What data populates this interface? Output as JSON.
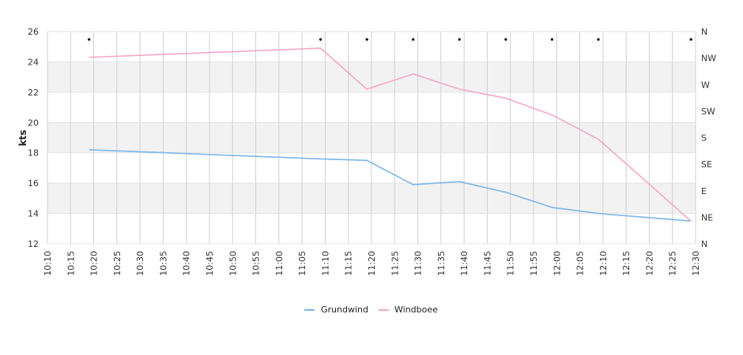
{
  "chart_data": {
    "type": "line",
    "ylabel": "kts",
    "xlabel": "",
    "ylim": [
      12,
      26
    ],
    "y_ticks": [
      12,
      14,
      16,
      18,
      20,
      22,
      24,
      26
    ],
    "x_tick_labels": [
      "10:10",
      "10:15",
      "10:20",
      "10:25",
      "10:30",
      "10:35",
      "10:40",
      "10:45",
      "10:50",
      "10:55",
      "11:00",
      "11:05",
      "11:10",
      "11:15",
      "11:20",
      "11:25",
      "11:30",
      "11:35",
      "11:40",
      "11:45",
      "11:50",
      "11:55",
      "12:00",
      "12:05",
      "12:10",
      "12:15",
      "12:20",
      "12:25",
      "12:30"
    ],
    "right_axis_labels": [
      "N",
      "NE",
      "E",
      "SE",
      "S",
      "SW",
      "W",
      "NW",
      "N"
    ],
    "direction_marker_times": [
      "10:19",
      "11:09",
      "11:19",
      "11:29",
      "11:39",
      "11:49",
      "11:59",
      "12:09",
      "12:29"
    ],
    "grid": true,
    "legend_position": "bottom",
    "series": [
      {
        "name": "Grundwind",
        "color": "#7cb5ec",
        "x": [
          "10:19",
          "11:09",
          "11:19",
          "11:29",
          "11:39",
          "11:49",
          "11:59",
          "12:09",
          "12:29"
        ],
        "values": [
          18.2,
          17.6,
          17.5,
          15.9,
          16.1,
          15.4,
          14.4,
          14.0,
          13.5
        ]
      },
      {
        "name": "Windboee",
        "color": "#f7a6c8",
        "x": [
          "10:19",
          "11:09",
          "11:19",
          "11:29",
          "11:39",
          "11:49",
          "11:59",
          "12:09",
          "12:29"
        ],
        "values": [
          24.3,
          24.9,
          22.2,
          23.2,
          22.2,
          21.6,
          20.5,
          18.9,
          13.5
        ]
      }
    ]
  }
}
